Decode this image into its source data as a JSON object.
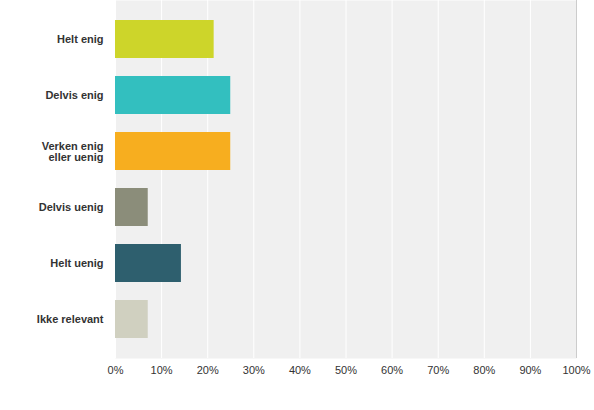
{
  "chart_data": {
    "type": "bar",
    "orientation": "horizontal",
    "categories": [
      "Helt enig",
      "Delvis enig",
      "Verken enig eller uenig",
      "Delvis uenig",
      "Helt uenig",
      "Ikke relevant"
    ],
    "values": [
      21.4,
      25,
      25,
      7.1,
      14.3,
      7.1
    ],
    "colors": [
      "#cdd52a",
      "#33bfbf",
      "#f7ae1f",
      "#8b8d7a",
      "#2e5f6e",
      "#d0d0c0"
    ],
    "xlim": [
      0,
      100
    ],
    "xticks": [
      {
        "value": 0,
        "label": "0%"
      },
      {
        "value": 10,
        "label": "10%"
      },
      {
        "value": 20,
        "label": "20%"
      },
      {
        "value": 30,
        "label": "30%"
      },
      {
        "value": 40,
        "label": "40%"
      },
      {
        "value": 50,
        "label": "50%"
      },
      {
        "value": 60,
        "label": "60%"
      },
      {
        "value": 70,
        "label": "70%"
      },
      {
        "value": 80,
        "label": "80%"
      },
      {
        "value": 90,
        "label": "90%"
      },
      {
        "value": 100,
        "label": "100%"
      }
    ],
    "grid": true
  }
}
